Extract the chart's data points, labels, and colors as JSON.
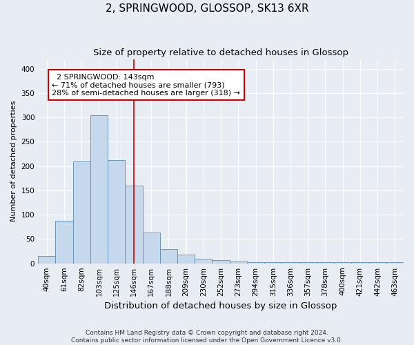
{
  "title": "2, SPRINGWOOD, GLOSSOP, SK13 6XR",
  "subtitle": "Size of property relative to detached houses in Glossop",
  "xlabel": "Distribution of detached houses by size in Glossop",
  "ylabel": "Number of detached properties",
  "footer_line1": "Contains HM Land Registry data © Crown copyright and database right 2024.",
  "footer_line2": "Contains public sector information licensed under the Open Government Licence v3.0.",
  "bar_labels": [
    "40sqm",
    "61sqm",
    "82sqm",
    "103sqm",
    "125sqm",
    "146sqm",
    "167sqm",
    "188sqm",
    "209sqm",
    "230sqm",
    "252sqm",
    "273sqm",
    "294sqm",
    "315sqm",
    "336sqm",
    "357sqm",
    "378sqm",
    "400sqm",
    "421sqm",
    "442sqm",
    "463sqm"
  ],
  "bar_values": [
    15,
    88,
    210,
    305,
    213,
    160,
    64,
    30,
    18,
    9,
    6,
    4,
    3,
    3,
    3,
    3,
    2,
    3,
    3,
    3,
    2
  ],
  "bar_color": "#c5d8ec",
  "bar_edgecolor": "#5b8db8",
  "background_color": "#e8edf4",
  "grid_color": "#ffffff",
  "vline_color": "#cc0000",
  "vline_x": 5,
  "annotation_text": "  2 SPRINGWOOD: 143sqm  \n← 71% of detached houses are smaller (793)\n28% of semi-detached houses are larger (318) →",
  "annotation_box_facecolor": "#ffffff",
  "annotation_box_edgecolor": "#cc0000",
  "ylim": [
    0,
    420
  ],
  "yticks": [
    0,
    50,
    100,
    150,
    200,
    250,
    300,
    350,
    400
  ],
  "title_fontsize": 11,
  "subtitle_fontsize": 9.5,
  "xlabel_fontsize": 9.5,
  "ylabel_fontsize": 8,
  "tick_fontsize": 7.5,
  "annotation_fontsize": 8,
  "footer_fontsize": 6.5
}
